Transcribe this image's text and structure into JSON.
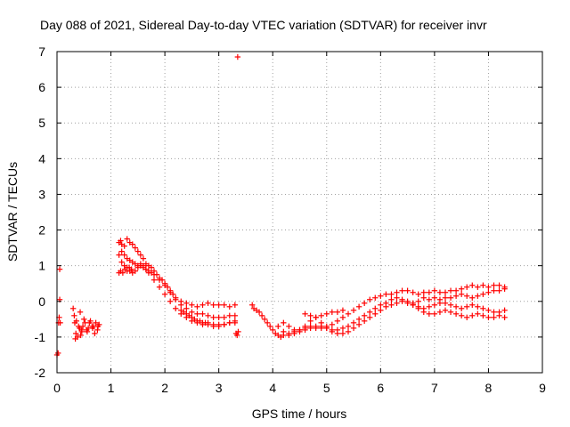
{
  "chart_data": {
    "type": "scatter",
    "title": "Day 088 of 2021, Sidereal Day-to-day VTEC variation (SDTVAR) for receiver invr",
    "xlabel": "GPS time / hours",
    "ylabel": "SDTVAR / TECUs",
    "xlim": [
      0,
      9
    ],
    "ylim": [
      -2,
      7
    ],
    "xticks": [
      "0",
      "1",
      "2",
      "3",
      "4",
      "5",
      "6",
      "7",
      "8",
      "9"
    ],
    "yticks": [
      "-2",
      "-1",
      "0",
      "1",
      "2",
      "3",
      "4",
      "5",
      "6",
      "7"
    ],
    "grid": true,
    "marker": "+",
    "color": "#ff0000",
    "series": [
      {
        "name": "SDTVAR",
        "x": [
          0.0,
          0.02,
          0.03,
          0.04,
          0.05,
          0.05,
          0.06,
          0.3,
          0.33,
          0.35,
          0.38,
          0.4,
          0.43,
          0.45,
          0.48,
          0.5,
          0.55,
          0.6,
          0.65,
          0.7,
          0.75,
          0.78,
          0.32,
          0.36,
          0.42,
          0.46,
          0.52,
          0.58,
          0.62,
          0.68,
          0.72,
          0.34,
          0.44,
          0.56,
          0.66,
          0.76,
          1.15,
          1.18,
          1.2,
          1.25,
          1.3,
          1.35,
          1.4,
          1.45,
          1.5,
          1.55,
          1.6,
          1.65,
          1.7,
          1.75,
          1.8,
          1.85,
          1.9,
          1.95,
          2.0,
          2.05,
          2.1,
          2.15,
          2.2,
          2.3,
          2.4,
          2.5,
          2.6,
          2.7,
          2.8,
          2.9,
          3.0,
          3.1,
          3.2,
          3.3,
          1.2,
          1.25,
          1.3,
          1.35,
          1.4,
          1.45,
          1.5,
          1.55,
          1.6,
          1.65,
          1.7,
          1.75,
          1.8,
          1.9,
          2.0,
          2.1,
          2.2,
          2.3,
          2.4,
          2.5,
          2.6,
          2.7,
          2.8,
          2.9,
          3.0,
          3.1,
          3.2,
          3.3,
          1.15,
          1.2,
          1.25,
          1.3,
          1.35,
          1.4,
          1.45,
          1.5,
          1.55,
          1.6,
          1.65,
          1.7,
          1.8,
          1.9,
          2.0,
          2.1,
          2.2,
          2.3,
          2.4,
          2.5,
          2.6,
          2.7,
          2.8,
          2.9,
          3.0,
          3.1,
          3.2,
          3.3,
          1.15,
          1.18,
          1.22,
          1.26,
          1.3,
          1.34,
          1.38,
          2.3,
          2.35,
          2.4,
          2.45,
          2.5,
          2.55,
          2.6,
          2.65,
          2.7,
          2.75,
          2.8,
          2.9,
          3.0,
          3.1,
          3.2,
          3.3,
          3.32,
          3.34,
          3.36,
          3.62,
          3.65,
          3.7,
          3.75,
          3.8,
          3.85,
          3.9,
          3.95,
          4.0,
          4.05,
          4.1,
          4.15,
          4.2,
          4.3,
          4.4,
          4.5,
          4.6,
          4.7,
          4.8,
          4.9,
          5.0,
          5.1,
          5.2,
          5.3,
          5.4,
          5.5,
          5.6,
          5.7,
          5.8,
          5.9,
          6.0,
          6.1,
          6.2,
          6.3,
          6.4,
          6.5,
          6.6,
          6.7,
          6.8,
          6.9,
          7.0,
          7.1,
          7.2,
          7.3,
          7.4,
          7.5,
          7.6,
          7.7,
          7.8,
          7.9,
          8.0,
          8.1,
          8.2,
          8.3,
          4.1,
          4.2,
          4.3,
          4.4,
          4.5,
          4.6,
          4.7,
          4.8,
          4.9,
          5.0,
          5.1,
          5.2,
          5.3,
          5.4,
          5.5,
          5.6,
          5.7,
          5.8,
          5.9,
          6.0,
          6.1,
          6.2,
          6.3,
          6.4,
          6.5,
          6.6,
          6.7,
          6.8,
          6.9,
          7.0,
          7.1,
          7.2,
          7.3,
          7.4,
          7.5,
          7.6,
          7.7,
          7.8,
          7.9,
          8.0,
          8.1,
          8.2,
          8.3,
          4.2,
          4.3,
          4.4,
          4.5,
          4.6,
          4.7,
          4.8,
          4.9,
          5.0,
          5.1,
          5.2,
          5.3,
          5.4,
          5.5,
          5.6,
          5.7,
          5.8,
          5.9,
          6.0,
          6.1,
          6.2,
          6.3,
          6.4,
          6.5,
          6.6,
          6.7,
          6.8,
          6.9,
          7.0,
          7.1,
          7.2,
          7.3,
          7.4,
          7.5,
          7.6,
          7.7,
          7.8,
          7.9,
          8.0,
          8.1,
          8.2,
          8.3,
          4.6,
          4.7,
          4.8,
          4.9,
          5.0,
          5.1,
          5.2,
          5.3,
          6.6,
          6.7,
          6.8,
          6.9,
          7.0,
          7.1,
          7.2,
          7.3,
          7.4,
          7.5,
          7.6,
          7.7,
          7.8,
          7.9,
          8.0,
          8.1,
          8.2,
          8.3,
          3.35
        ],
        "y": [
          -1.5,
          -1.45,
          -0.6,
          -0.45,
          0.9,
          0.05,
          -0.6,
          -0.2,
          -0.6,
          -0.9,
          -1.0,
          -0.7,
          -0.3,
          -0.8,
          -0.7,
          -0.5,
          -0.8,
          -0.6,
          -0.7,
          -0.9,
          -0.8,
          -0.65,
          -0.4,
          -0.55,
          -0.75,
          -0.85,
          -0.6,
          -0.75,
          -0.55,
          -0.7,
          -0.6,
          -1.05,
          -0.95,
          -0.85,
          -0.75,
          -0.7,
          1.65,
          1.7,
          1.6,
          1.55,
          1.75,
          1.65,
          1.6,
          1.5,
          1.4,
          1.3,
          1.2,
          1.05,
          1.0,
          0.95,
          0.85,
          0.75,
          0.65,
          0.6,
          0.5,
          0.4,
          0.3,
          0.2,
          0.1,
          0.0,
          -0.05,
          -0.1,
          -0.15,
          -0.1,
          -0.05,
          -0.1,
          -0.1,
          -0.1,
          -0.15,
          -0.1,
          1.4,
          1.3,
          1.2,
          1.15,
          1.1,
          1.05,
          1.0,
          1.0,
          0.95,
          0.9,
          0.85,
          0.8,
          0.75,
          0.6,
          0.45,
          0.25,
          0.05,
          -0.1,
          -0.2,
          -0.3,
          -0.35,
          -0.35,
          -0.4,
          -0.45,
          -0.45,
          -0.45,
          -0.4,
          -0.4,
          1.3,
          1.1,
          1.0,
          0.95,
          0.85,
          0.8,
          0.85,
          0.95,
          1.05,
          1.0,
          0.9,
          0.8,
          0.6,
          0.4,
          0.2,
          0.0,
          -0.2,
          -0.35,
          -0.45,
          -0.55,
          -0.6,
          -0.65,
          -0.65,
          -0.7,
          -0.7,
          -0.65,
          -0.6,
          -0.55,
          0.8,
          0.85,
          0.8,
          0.9,
          0.85,
          0.95,
          0.9,
          -0.25,
          -0.3,
          -0.35,
          -0.4,
          -0.45,
          -0.5,
          -0.55,
          -0.55,
          -0.6,
          -0.6,
          -0.6,
          -0.65,
          -0.65,
          -0.65,
          -0.6,
          -0.6,
          -0.9,
          -0.95,
          -0.85,
          -0.1,
          -0.2,
          -0.25,
          -0.3,
          -0.4,
          -0.5,
          -0.6,
          -0.7,
          -0.8,
          -0.9,
          -0.95,
          -1.0,
          -0.95,
          -0.9,
          -0.85,
          -0.8,
          -0.8,
          -0.75,
          -0.75,
          -0.7,
          -0.7,
          -0.65,
          -0.55,
          -0.45,
          -0.35,
          -0.25,
          -0.15,
          -0.05,
          0.05,
          0.1,
          0.15,
          0.2,
          0.2,
          0.25,
          0.3,
          0.3,
          0.25,
          0.2,
          0.25,
          0.25,
          0.3,
          0.25,
          0.25,
          0.3,
          0.3,
          0.35,
          0.4,
          0.45,
          0.4,
          0.45,
          0.4,
          0.45,
          0.45,
          0.4,
          -0.7,
          -0.85,
          -0.95,
          -0.9,
          -0.8,
          -0.75,
          -0.7,
          -0.7,
          -0.75,
          -0.75,
          -0.8,
          -0.8,
          -0.75,
          -0.7,
          -0.6,
          -0.5,
          -0.4,
          -0.3,
          -0.2,
          -0.1,
          -0.05,
          0.05,
          0.1,
          0.05,
          0.0,
          -0.05,
          0.0,
          0.1,
          0.05,
          0.1,
          0.05,
          0.1,
          0.1,
          0.15,
          0.2,
          0.15,
          0.1,
          0.15,
          0.2,
          0.25,
          0.3,
          0.3,
          0.35,
          -0.6,
          -0.7,
          -0.8,
          -0.85,
          -0.7,
          -0.55,
          -0.45,
          -0.6,
          -0.75,
          -0.85,
          -0.9,
          -0.9,
          -0.85,
          -0.75,
          -0.65,
          -0.55,
          -0.45,
          -0.35,
          -0.25,
          -0.15,
          -0.1,
          -0.05,
          0.0,
          -0.05,
          -0.1,
          -0.15,
          -0.2,
          -0.15,
          -0.1,
          -0.05,
          -0.05,
          -0.1,
          -0.15,
          -0.2,
          -0.15,
          -0.1,
          -0.15,
          -0.2,
          -0.25,
          -0.3,
          -0.3,
          -0.25,
          -0.35,
          -0.4,
          -0.45,
          -0.4,
          -0.35,
          -0.3,
          -0.3,
          -0.25,
          -0.1,
          -0.2,
          -0.3,
          -0.35,
          -0.35,
          -0.3,
          -0.25,
          -0.3,
          -0.35,
          -0.4,
          -0.45,
          -0.4,
          -0.35,
          -0.4,
          -0.45,
          -0.45,
          -0.4,
          -0.45,
          6.85
        ]
      }
    ]
  }
}
